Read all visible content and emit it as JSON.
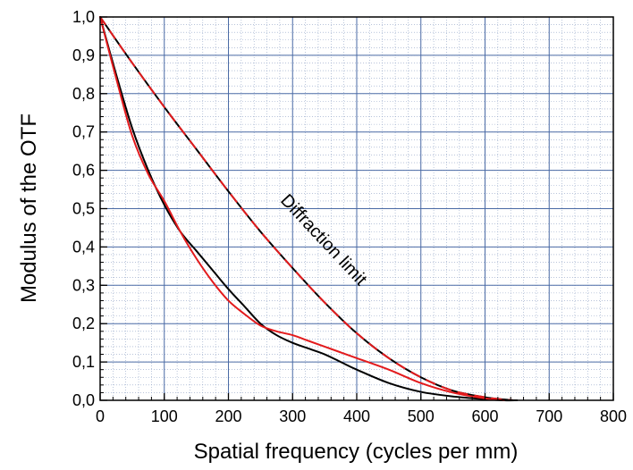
{
  "chart_data": {
    "type": "line",
    "xlabel": "Spatial frequency (cycles per mm)",
    "ylabel": "Modulus of the OTF",
    "xlim": [
      0,
      800
    ],
    "ylim": [
      0,
      1.0
    ],
    "x_ticks": [
      "0",
      "100",
      "200",
      "300",
      "400",
      "500",
      "600",
      "700",
      "800"
    ],
    "y_ticks": [
      "0,0",
      "0,1",
      "0,2",
      "0,3",
      "0,4",
      "0,5",
      "0,6",
      "0,7",
      "0,8",
      "0,9",
      "1,0"
    ],
    "grid": true,
    "annotations": [
      {
        "text": "Diffraction limit",
        "x": 280,
        "y": 0.52
      }
    ],
    "series": [
      {
        "color": "#000000",
        "style": "solid",
        "x": [
          0,
          50,
          100,
          150,
          200,
          250,
          300,
          350,
          400,
          450,
          500,
          550,
          600,
          630,
          645
        ],
        "y": [
          1.0,
          0.88,
          0.765,
          0.655,
          0.545,
          0.44,
          0.345,
          0.255,
          0.175,
          0.11,
          0.06,
          0.025,
          0.008,
          0.002,
          0.0
        ]
      },
      {
        "color": "#e31a1c",
        "style": "dashed",
        "x": [
          0,
          50,
          100,
          150,
          200,
          250,
          300,
          350,
          400,
          450,
          500,
          550,
          600,
          630,
          645
        ],
        "y": [
          1.0,
          0.88,
          0.765,
          0.655,
          0.545,
          0.44,
          0.345,
          0.255,
          0.175,
          0.11,
          0.06,
          0.025,
          0.008,
          0.002,
          0.0
        ]
      },
      {
        "color": "#000000",
        "style": "solid",
        "x": [
          0,
          25,
          50,
          75,
          100,
          125,
          150,
          175,
          200,
          225,
          250,
          275,
          300,
          325,
          350,
          375,
          400,
          450,
          500,
          550,
          600,
          630,
          650
        ],
        "y": [
          1.0,
          0.85,
          0.71,
          0.6,
          0.51,
          0.44,
          0.39,
          0.34,
          0.29,
          0.245,
          0.2,
          0.17,
          0.15,
          0.135,
          0.12,
          0.1,
          0.08,
          0.045,
          0.022,
          0.01,
          0.003,
          0.0,
          0.0
        ]
      },
      {
        "color": "#e31a1c",
        "style": "solid",
        "x": [
          0,
          25,
          50,
          75,
          100,
          125,
          150,
          175,
          200,
          225,
          250,
          275,
          300,
          325,
          350,
          375,
          400,
          450,
          500,
          550,
          600,
          620,
          630
        ],
        "y": [
          1.0,
          0.84,
          0.69,
          0.59,
          0.52,
          0.44,
          0.37,
          0.31,
          0.26,
          0.225,
          0.195,
          0.18,
          0.17,
          0.155,
          0.14,
          0.125,
          0.11,
          0.08,
          0.045,
          0.02,
          0.005,
          0.002,
          0.0
        ]
      }
    ]
  }
}
